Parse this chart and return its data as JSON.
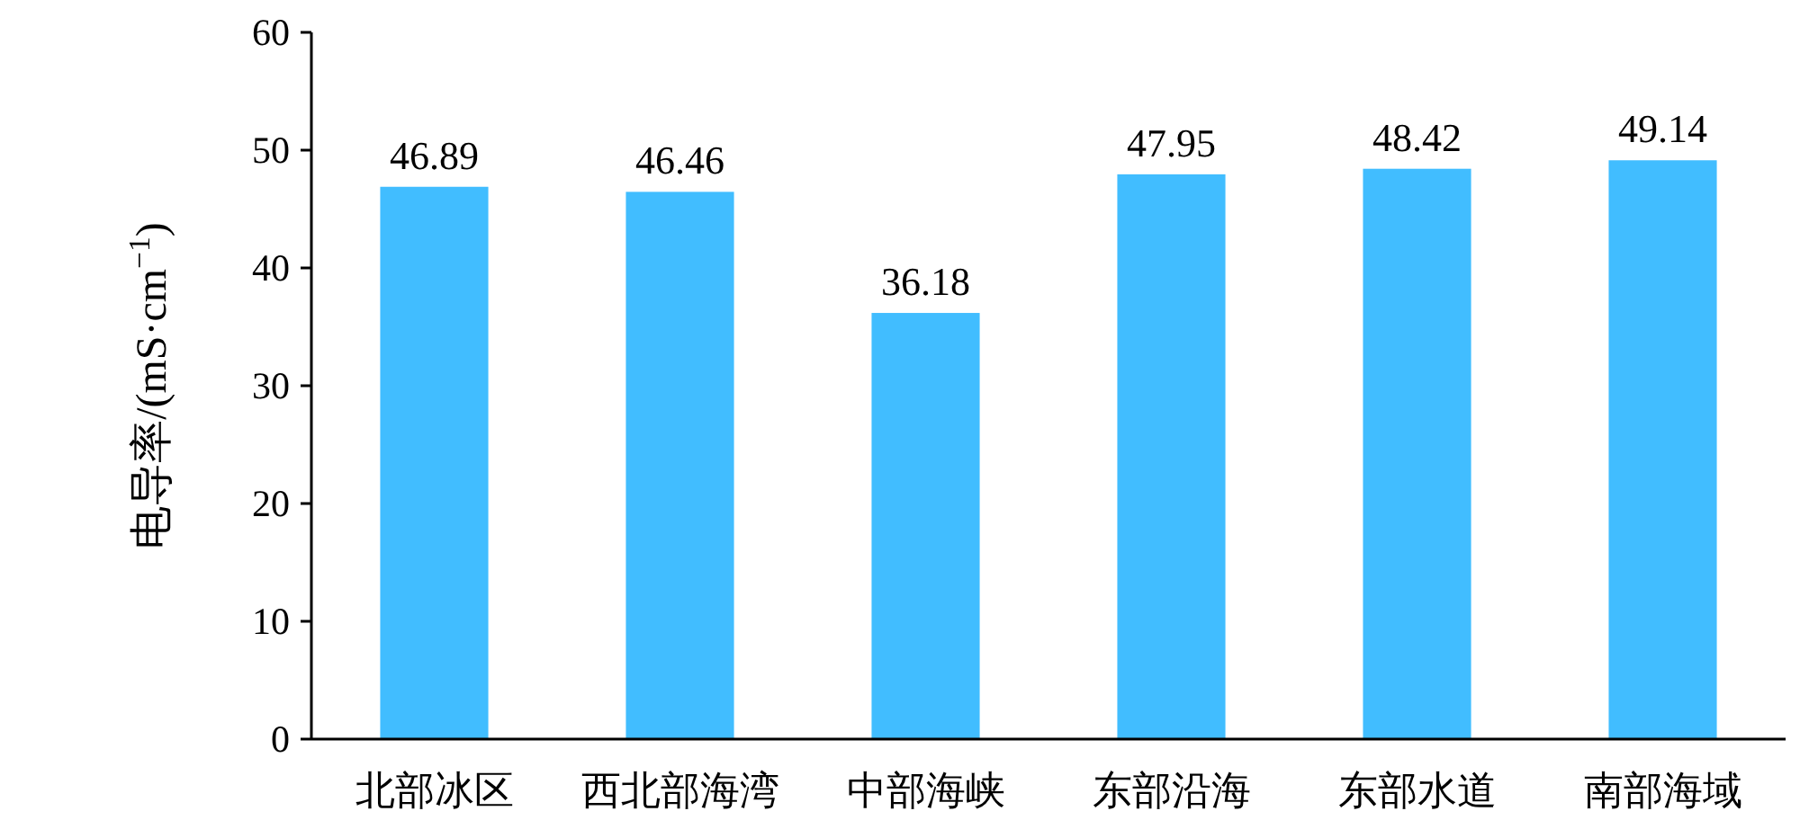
{
  "chart_data": {
    "type": "bar",
    "ylabel": "电导率/(mS·cm$^{−1}$)",
    "categories": [
      "北部冰区",
      "西北部海湾",
      "中部海峡",
      "东部沿海",
      "东部水道",
      "南部海域"
    ],
    "values": [
      46.89,
      46.46,
      36.18,
      47.95,
      48.42,
      49.14
    ],
    "color": "#41bdff",
    "ylim": [
      0,
      60
    ],
    "yticks": [
      0,
      10,
      20,
      30,
      40,
      50,
      60
    ],
    "data_labels": true
  }
}
